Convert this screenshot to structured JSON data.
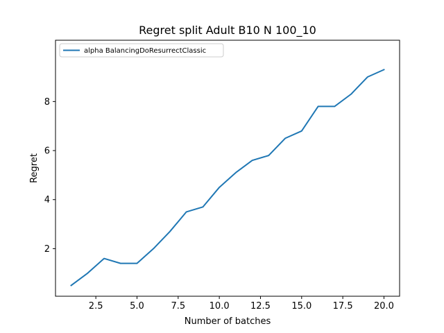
{
  "chart_data": {
    "type": "line",
    "title": "Regret split Adult B10 N 100_10",
    "xlabel": "Number of batches",
    "ylabel": "Regret",
    "xlim": [
      0.05,
      20.95
    ],
    "ylim": [
      0.06,
      10.5
    ],
    "xticks": [
      2.5,
      5.0,
      7.5,
      10.0,
      12.5,
      15.0,
      17.5,
      20.0
    ],
    "xtick_labels": [
      "2.5",
      "5.0",
      "7.5",
      "10.0",
      "12.5",
      "15.0",
      "17.5",
      "20.0"
    ],
    "yticks": [
      2,
      4,
      6,
      8
    ],
    "ytick_labels": [
      "2",
      "4",
      "6",
      "8"
    ],
    "grid": false,
    "legend_position": "top-left",
    "series": [
      {
        "name": "alpha BalancingDoResurrectClassic",
        "color": "#1f77b4",
        "x": [
          1,
          2,
          3,
          4,
          5,
          6,
          7,
          8,
          9,
          10,
          11,
          12,
          13,
          14,
          15,
          16,
          17,
          18,
          19,
          20
        ],
        "y": [
          0.5,
          1.0,
          1.6,
          1.4,
          1.4,
          2.0,
          2.7,
          3.5,
          3.7,
          4.5,
          5.1,
          5.6,
          5.8,
          6.5,
          6.8,
          7.8,
          7.8,
          8.3,
          9.0,
          9.3
        ]
      }
    ]
  }
}
